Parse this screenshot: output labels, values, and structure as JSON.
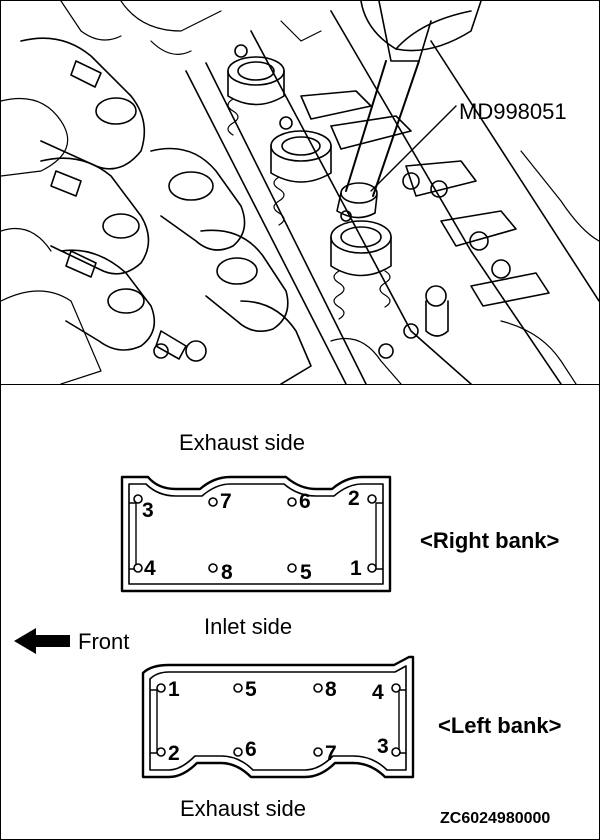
{
  "illustration": {
    "tool_callout": "MD998051"
  },
  "diagram": {
    "right_bank": {
      "top_label": "Exhaust side",
      "bottom_label": "Inlet side",
      "bank_label": "<Right bank>",
      "bolts_top_row": [
        "3",
        "7",
        "6",
        "2"
      ],
      "bolts_bottom_row": [
        "4",
        "8",
        "5",
        "1"
      ]
    },
    "front_indicator": {
      "label": "Front"
    },
    "left_bank": {
      "bank_label": "<Left bank>",
      "bottom_label": "Exhaust side",
      "bolts_top_row": [
        "1",
        "5",
        "8",
        "4"
      ],
      "bolts_bottom_row": [
        "2",
        "6",
        "7",
        "3"
      ]
    },
    "figure_id": "ZC6024980000"
  }
}
